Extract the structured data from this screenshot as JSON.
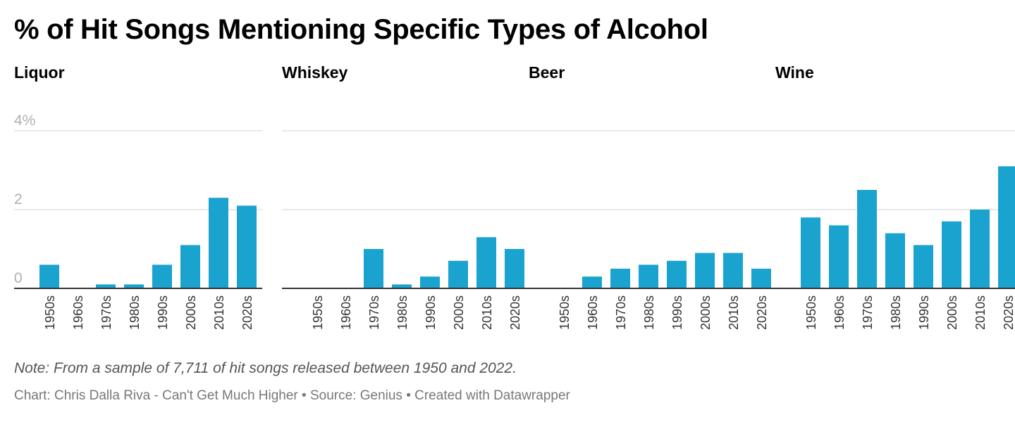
{
  "title": "% of Hit Songs Mentioning Specific Types of Alcohol",
  "footer": {
    "note": "Note: From a sample of 7,711 of hit songs released between 1950 and 2022.",
    "credit": "Chart: Chris Dalla Riva - Can't Get Much Higher • Source: Genius • Created with Datawrapper"
  },
  "colors": {
    "bar": "#1ba3cf",
    "grid": "#e2e2e2",
    "axis": "#333333",
    "tick_label": "#b0b0b0"
  },
  "chart_data": [
    {
      "type": "bar",
      "title": "Liquor",
      "categories": [
        "1950s",
        "1960s",
        "1970s",
        "1980s",
        "1990s",
        "2000s",
        "2010s",
        "2020s"
      ],
      "values": [
        0.6,
        0,
        0.1,
        0.1,
        0.6,
        1.1,
        2.3,
        2.1
      ],
      "yticks": [
        "0",
        "2",
        "4%"
      ],
      "ylim": [
        0,
        4
      ],
      "grid": true,
      "show_ytick_labels": true
    },
    {
      "type": "bar",
      "title": "Whiskey",
      "categories": [
        "1950s",
        "1960s",
        "1970s",
        "1980s",
        "1990s",
        "2000s",
        "2010s",
        "2020s"
      ],
      "values": [
        0,
        0,
        1.0,
        0.1,
        0.3,
        0.7,
        1.3,
        1.0
      ],
      "ylim": [
        0,
        4
      ],
      "grid": true,
      "show_ytick_labels": false
    },
    {
      "type": "bar",
      "title": "Beer",
      "categories": [
        "1950s",
        "1960s",
        "1970s",
        "1980s",
        "1990s",
        "2000s",
        "2010s",
        "2020s"
      ],
      "values": [
        0,
        0.3,
        0.5,
        0.6,
        0.7,
        0.9,
        0.9,
        0.5
      ],
      "ylim": [
        0,
        4
      ],
      "grid": true,
      "show_ytick_labels": false
    },
    {
      "type": "bar",
      "title": "Wine",
      "categories": [
        "1950s",
        "1960s",
        "1970s",
        "1980s",
        "1990s",
        "2000s",
        "2010s",
        "2020s"
      ],
      "values": [
        1.8,
        1.6,
        2.5,
        1.4,
        1.1,
        1.7,
        2.0,
        3.1
      ],
      "ylim": [
        0,
        4
      ],
      "grid": true,
      "show_ytick_labels": false
    }
  ]
}
